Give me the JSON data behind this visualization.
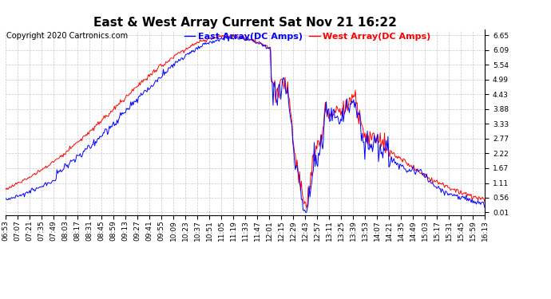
{
  "title": "East & West Array Current Sat Nov 21 16:22",
  "copyright": "Copyright 2020 Cartronics.com",
  "legend_east": "East Array(DC Amps)",
  "legend_west": "West Array(DC Amps)",
  "color_east": "blue",
  "color_west": "red",
  "ylim": [
    0.01,
    6.65
  ],
  "yticks": [
    0.01,
    0.56,
    1.11,
    1.67,
    2.22,
    2.77,
    3.33,
    3.88,
    4.43,
    4.99,
    5.54,
    6.09,
    6.65
  ],
  "background_color": "#ffffff",
  "grid_color": "#c8c8c8",
  "title_fontsize": 11,
  "tick_fontsize": 6.5,
  "copyright_fontsize": 7,
  "legend_fontsize": 8,
  "xtick_labels": [
    "06:53",
    "07:07",
    "07:21",
    "07:35",
    "07:49",
    "08:03",
    "08:17",
    "08:31",
    "08:45",
    "08:59",
    "09:13",
    "09:27",
    "09:41",
    "09:55",
    "10:09",
    "10:23",
    "10:37",
    "10:51",
    "11:05",
    "11:19",
    "11:33",
    "11:47",
    "12:01",
    "12:15",
    "12:29",
    "12:43",
    "12:57",
    "13:11",
    "13:25",
    "13:39",
    "13:53",
    "14:07",
    "14:21",
    "14:35",
    "14:49",
    "15:03",
    "15:17",
    "15:31",
    "15:45",
    "15:59",
    "16:13"
  ]
}
